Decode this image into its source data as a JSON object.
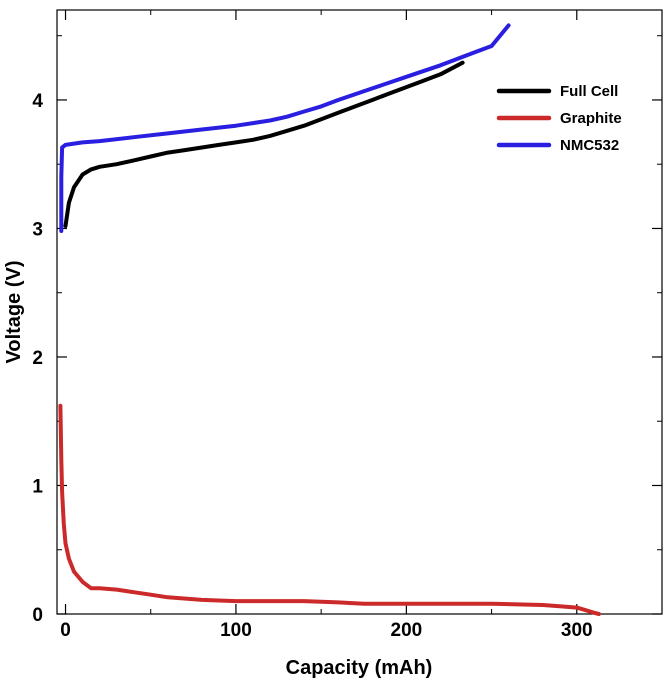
{
  "chart_data": {
    "type": "line",
    "xlabel": "Capacity (mAh)",
    "ylabel": "Voltage (V)",
    "xlim": [
      -5,
      350
    ],
    "ylim": [
      0,
      4.7
    ],
    "xticks": [
      0,
      100,
      200,
      300
    ],
    "xtick_labels": [
      "0",
      "100",
      "200",
      "300"
    ],
    "yticks": [
      0,
      1,
      2,
      3,
      4
    ],
    "ytick_labels": [
      "0",
      "1",
      "2",
      "3",
      "4"
    ],
    "grid": false,
    "legend_position": "top-right",
    "series": [
      {
        "name": "Full Cell",
        "color": "#000000",
        "x": [
          0,
          2,
          5,
          10,
          15,
          20,
          30,
          40,
          50,
          60,
          70,
          80,
          90,
          100,
          110,
          120,
          130,
          140,
          150,
          160,
          170,
          180,
          190,
          200,
          210,
          220,
          233
        ],
        "y": [
          3.02,
          3.2,
          3.32,
          3.42,
          3.46,
          3.48,
          3.5,
          3.53,
          3.56,
          3.59,
          3.61,
          3.63,
          3.65,
          3.67,
          3.69,
          3.72,
          3.76,
          3.8,
          3.85,
          3.9,
          3.95,
          4.0,
          4.05,
          4.1,
          4.15,
          4.2,
          4.29
        ]
      },
      {
        "name": "Graphite",
        "color": "#cc2a2a",
        "x": [
          -3,
          -2.5,
          -2,
          -1,
          0,
          2,
          5,
          10,
          15,
          20,
          30,
          40,
          50,
          60,
          80,
          100,
          120,
          140,
          160,
          175,
          200,
          250,
          280,
          290,
          300,
          305,
          310,
          313
        ],
        "y": [
          1.62,
          1.2,
          0.95,
          0.7,
          0.55,
          0.43,
          0.33,
          0.25,
          0.2,
          0.2,
          0.19,
          0.17,
          0.15,
          0.13,
          0.11,
          0.1,
          0.1,
          0.1,
          0.09,
          0.08,
          0.08,
          0.08,
          0.07,
          0.06,
          0.05,
          0.03,
          0.01,
          0.0
        ]
      },
      {
        "name": "NMC532",
        "color": "#2a1fe0",
        "x": [
          -2.5,
          -2.5,
          -2,
          0,
          10,
          20,
          40,
          60,
          80,
          100,
          110,
          120,
          130,
          140,
          150,
          160,
          180,
          200,
          220,
          240,
          250,
          260
        ],
        "y": [
          2.98,
          3.4,
          3.63,
          3.65,
          3.67,
          3.68,
          3.71,
          3.74,
          3.77,
          3.8,
          3.82,
          3.84,
          3.87,
          3.91,
          3.95,
          4.0,
          4.09,
          4.18,
          4.27,
          4.37,
          4.42,
          4.58
        ]
      }
    ]
  }
}
